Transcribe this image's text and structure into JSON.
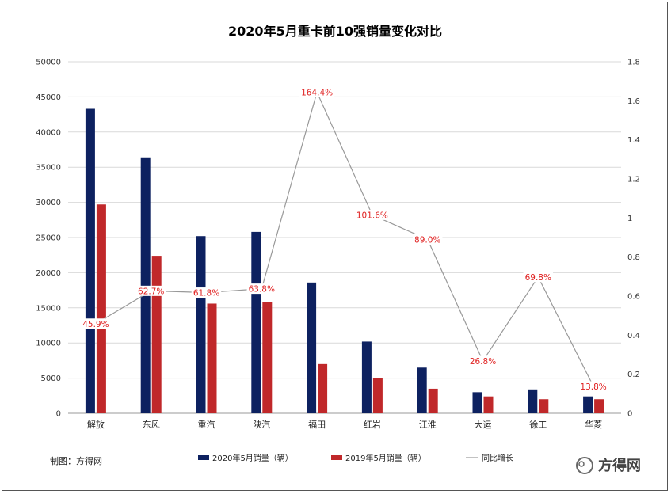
{
  "chart_data": {
    "type": "bar",
    "title": "2020年5月重卡前10强销量变化对比",
    "categories": [
      "解放",
      "东风",
      "重汽",
      "陕汽",
      "福田",
      "红岩",
      "江淮",
      "大运",
      "徐工",
      "华菱"
    ],
    "series": [
      {
        "name": "2020年5月销量（辆）",
        "type": "bar",
        "axis": "left",
        "color": "#0d2160",
        "values": [
          43300,
          36400,
          25200,
          25800,
          18600,
          10200,
          6500,
          3000,
          3400,
          2400
        ]
      },
      {
        "name": "2019年5月销量（辆）",
        "type": "bar",
        "axis": "left",
        "color": "#c0282a",
        "values": [
          29700,
          22400,
          15600,
          15800,
          7000,
          5000,
          3500,
          2400,
          2000,
          2000
        ]
      },
      {
        "name": "同比增长",
        "type": "line",
        "axis": "right",
        "color": "#999999",
        "values": [
          0.459,
          0.627,
          0.618,
          0.638,
          1.644,
          1.016,
          0.89,
          0.268,
          0.698,
          0.138
        ],
        "data_labels": [
          "45.9%",
          "62.7%",
          "61.8%",
          "63.8%",
          "164.4%",
          "101.6%",
          "89.0%",
          "26.8%",
          "69.8%",
          "13.8%"
        ]
      }
    ],
    "y_left": {
      "ylim": [
        0,
        50000
      ],
      "ticks": [
        "0",
        "5000",
        "10000",
        "15000",
        "20000",
        "25000",
        "30000",
        "35000",
        "40000",
        "45000",
        "50000"
      ]
    },
    "y_right": {
      "ylim": [
        0,
        1.8
      ],
      "ticks": [
        "0",
        "0.2",
        "0.4",
        "0.6",
        "0.8",
        "1",
        "1.2",
        "1.4",
        "1.6",
        "1.8"
      ]
    },
    "grid": true,
    "legend_position": "bottom"
  },
  "footer": {
    "credit": "制图：方得网",
    "brand": "方得网"
  }
}
